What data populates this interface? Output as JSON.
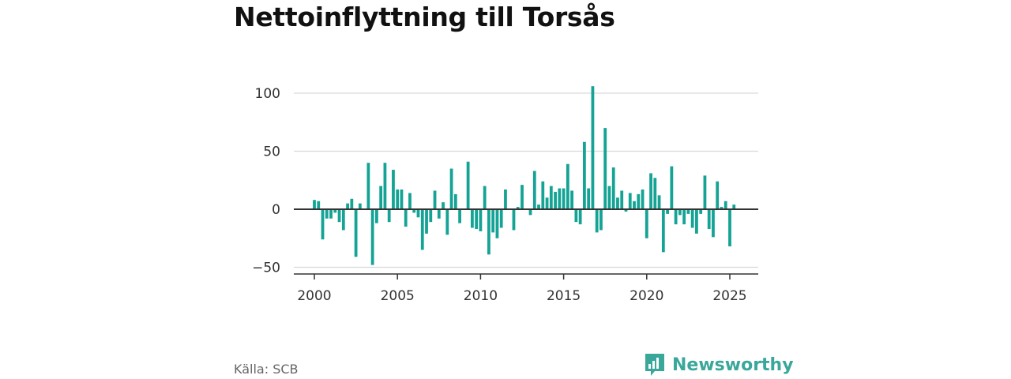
{
  "title": "Nettoinflyttning till Torsås",
  "source": "Källa: SCB",
  "brand": {
    "name": "Newsworthy",
    "icon": "bar-chart-speech-bubble-icon",
    "color": "#3aa79b"
  },
  "chart_data": {
    "type": "bar",
    "bar_color": "#14a394",
    "ylim": [
      -55,
      110
    ],
    "yticks": [
      -50,
      0,
      50,
      100
    ],
    "ytick_labels": [
      "−50",
      "0",
      "50",
      "100"
    ],
    "xlim": [
      1998.7,
      2026.8
    ],
    "xticks": [
      2000,
      2005,
      2010,
      2015,
      2020,
      2025
    ],
    "xtick_labels": [
      "2000",
      "2005",
      "2010",
      "2015",
      "2020",
      "2025"
    ],
    "grid": true,
    "x": [
      2000.0,
      2000.25,
      2000.5,
      2000.75,
      2001.0,
      2001.25,
      2001.5,
      2001.75,
      2002.0,
      2002.25,
      2002.5,
      2002.75,
      2003.0,
      2003.25,
      2003.5,
      2003.75,
      2004.0,
      2004.25,
      2004.5,
      2004.75,
      2005.0,
      2005.25,
      2005.5,
      2005.75,
      2006.0,
      2006.25,
      2006.5,
      2006.75,
      2007.0,
      2007.25,
      2007.5,
      2007.75,
      2008.0,
      2008.25,
      2008.5,
      2008.75,
      2009.0,
      2009.25,
      2009.5,
      2009.75,
      2010.0,
      2010.25,
      2010.5,
      2010.75,
      2011.0,
      2011.25,
      2011.5,
      2011.75,
      2012.0,
      2012.25,
      2012.5,
      2012.75,
      2013.0,
      2013.25,
      2013.5,
      2013.75,
      2014.0,
      2014.25,
      2014.5,
      2014.75,
      2015.0,
      2015.25,
      2015.5,
      2015.75,
      2016.0,
      2016.25,
      2016.5,
      2016.75,
      2017.0,
      2017.25,
      2017.5,
      2017.75,
      2018.0,
      2018.25,
      2018.5,
      2018.75,
      2019.0,
      2019.25,
      2019.5,
      2019.75,
      2020.0,
      2020.25,
      2020.5,
      2020.75,
      2021.0,
      2021.25,
      2021.5,
      2021.75,
      2022.0,
      2022.25,
      2022.5,
      2022.75,
      2023.0,
      2023.25,
      2023.5,
      2023.75,
      2024.0,
      2024.25,
      2024.5,
      2024.75,
      2025.0,
      2025.25
    ],
    "values": [
      8,
      7,
      -26,
      -8,
      -8,
      -3,
      -11,
      -18,
      5,
      9,
      -41,
      5,
      0,
      40,
      -48,
      -12,
      20,
      40,
      -11,
      34,
      17,
      17,
      -15,
      14,
      -3,
      -7,
      -35,
      -21,
      -11,
      16,
      -8,
      6,
      -22,
      35,
      13,
      -12,
      0,
      41,
      -16,
      -17,
      -19,
      20,
      -39,
      -20,
      -25,
      -16,
      17,
      0,
      -18,
      2,
      21,
      0,
      -5,
      33,
      4,
      24,
      10,
      20,
      15,
      18,
      18,
      39,
      16,
      -11,
      -13,
      58,
      18,
      106,
      -20,
      -18,
      70,
      20,
      36,
      10,
      16,
      -2,
      14,
      7,
      13,
      17,
      -25,
      31,
      27,
      12,
      -37,
      -4,
      37,
      -13,
      -5,
      -13,
      -4,
      -16,
      -21,
      -4,
      29,
      -17,
      -24,
      24,
      2,
      7,
      -32,
      4
    ]
  }
}
